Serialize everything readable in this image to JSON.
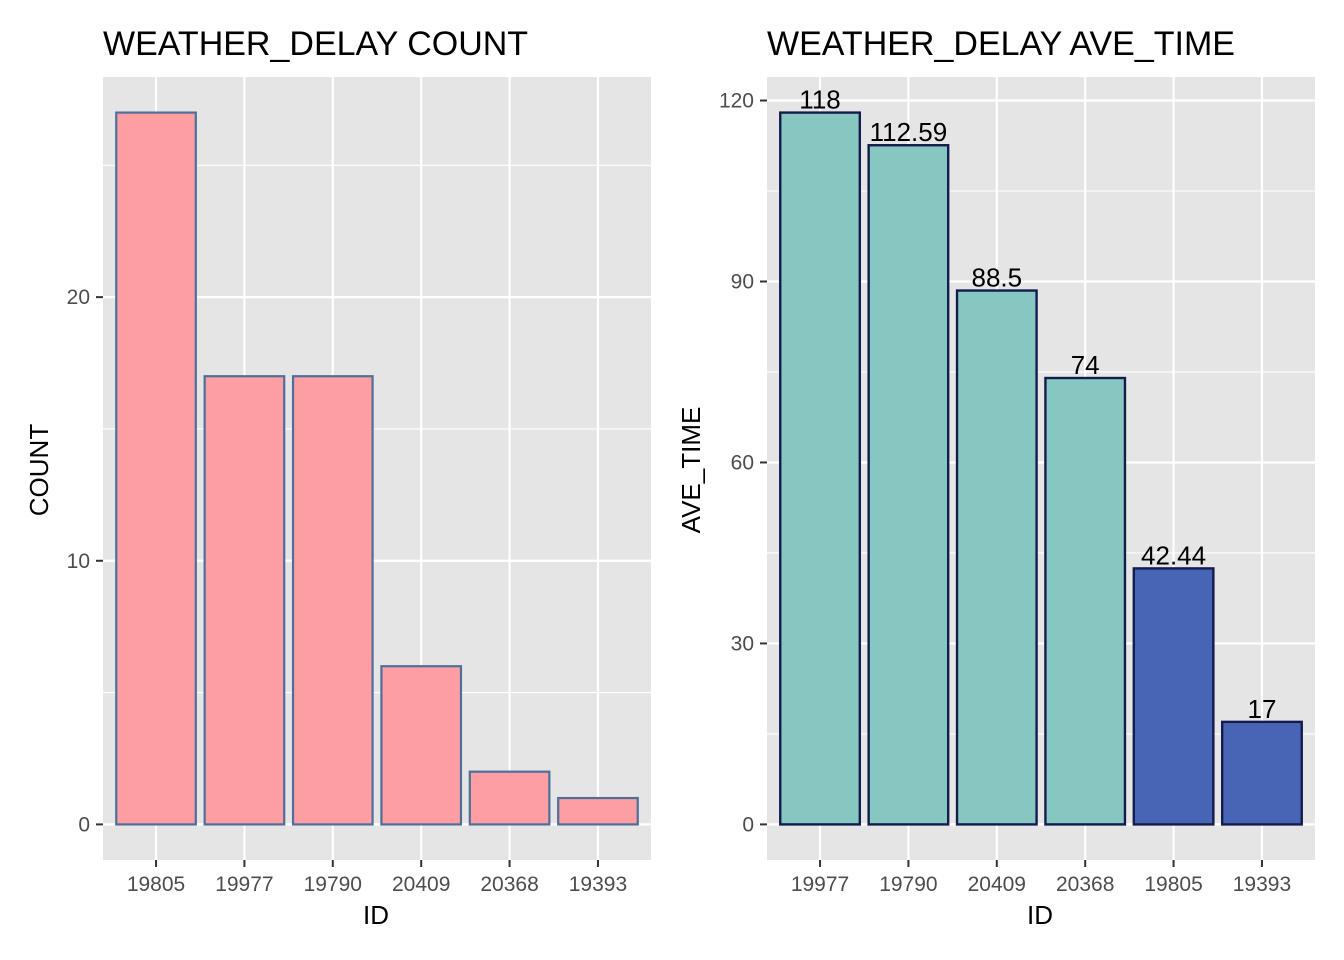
{
  "chart_data": [
    {
      "type": "bar",
      "title": "WEATHER_DELAY COUNT",
      "xlabel": "ID",
      "ylabel": "COUNT",
      "categories": [
        "19805",
        "19977",
        "19790",
        "20409",
        "20368",
        "19393"
      ],
      "values": [
        27,
        17,
        17,
        6,
        2,
        1
      ],
      "ylim": [
        -1.35,
        28.35
      ],
      "yticks": [
        0,
        10,
        20
      ],
      "grid": true,
      "legend": "none",
      "colors": {
        "fill": "#fd9ea2",
        "stroke": "#4d6f9a",
        "panel": "#e5e5e5",
        "grid": "#ffffff"
      }
    },
    {
      "type": "bar",
      "title": "WEATHER_DELAY AVE_TIME",
      "xlabel": "ID",
      "ylabel": "AVE_TIME",
      "categories": [
        "19977",
        "19790",
        "20409",
        "20368",
        "19805",
        "19393"
      ],
      "values": [
        118,
        112.59,
        88.5,
        74,
        42.44,
        17
      ],
      "labels": [
        "118",
        "112.59",
        "88.5",
        "74",
        "42.44",
        "17"
      ],
      "ylim": [
        -5.9,
        123.9
      ],
      "yticks": [
        0,
        30,
        60,
        90,
        120
      ],
      "grid": true,
      "legend": "none",
      "colors": {
        "fills": [
          "#86c8c1",
          "#86c8c1",
          "#86c8c1",
          "#86c8c1",
          "#4764b5",
          "#4764b5"
        ],
        "stroke": "#141b4d",
        "panel": "#e5e5e5",
        "grid": "#ffffff"
      }
    }
  ]
}
